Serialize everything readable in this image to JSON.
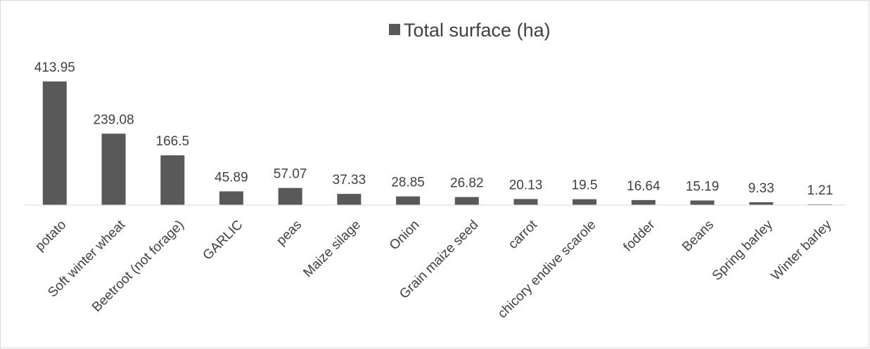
{
  "chart_data": {
    "type": "bar",
    "title": "",
    "xlabel": "",
    "ylabel": "",
    "categories": [
      "potato",
      "Soft winter wheat",
      "Beetroot (not forage)",
      "GARLIC",
      "peas",
      "Maize silage",
      "Onion",
      "Grain maize seed",
      "carrot",
      "chicory endive scarole",
      "fodder",
      "Beans",
      "Spring barley",
      "Winter barley"
    ],
    "series": [
      {
        "name": "Total surface (ha)",
        "values": [
          413.95,
          239.08,
          166.5,
          45.89,
          57.07,
          37.33,
          28.85,
          26.82,
          20.13,
          19.5,
          16.64,
          15.19,
          9.33,
          1.21
        ],
        "value_labels": [
          "413.95",
          "239.08",
          "166.5",
          "45.89",
          "57.07",
          "37.33",
          "28.85",
          "26.82",
          "20.13",
          "19.5",
          "16.64",
          "15.19",
          "9.33",
          "1.21"
        ],
        "color": "#595959"
      }
    ],
    "ylim": [
      0,
      413.95
    ],
    "grid": false,
    "legend": "top-center",
    "data_labels": true,
    "axis_color": "#d9d9d9",
    "text_color": "#404040"
  }
}
